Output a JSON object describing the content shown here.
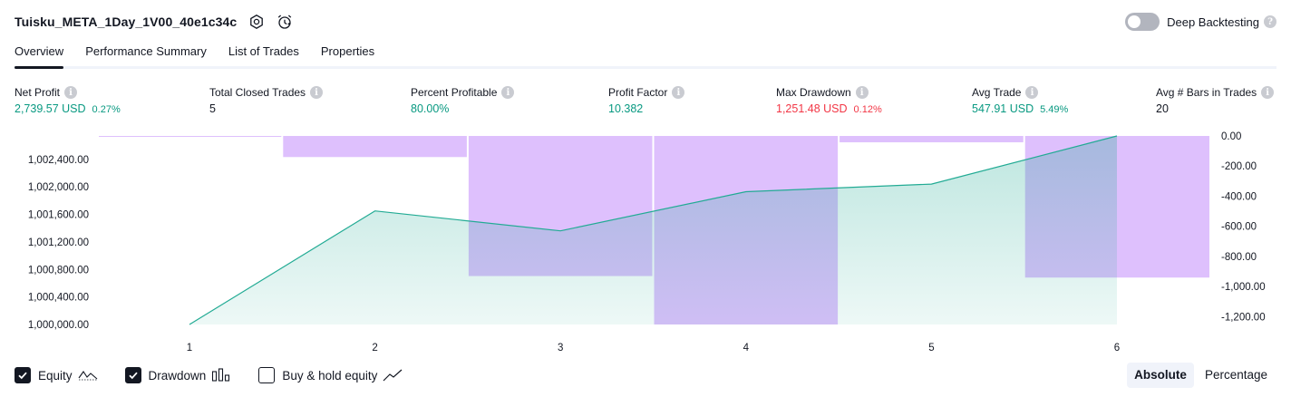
{
  "header": {
    "strategy_title": "Tuisku_META_1Day_1V00_40e1c34c",
    "deep_backtesting_label": "Deep Backtesting",
    "deep_backtesting_enabled": false
  },
  "tabs": [
    {
      "label": "Overview",
      "active": true
    },
    {
      "label": "Performance Summary",
      "active": false
    },
    {
      "label": "List of Trades",
      "active": false
    },
    {
      "label": "Properties",
      "active": false
    }
  ],
  "metrics": [
    {
      "label": "Net Profit",
      "value": "2,739.57 USD",
      "pct": "0.27%",
      "tone": "pos"
    },
    {
      "label": "Total Closed Trades",
      "value": "5",
      "pct": "",
      "tone": "neu"
    },
    {
      "label": "Percent Profitable",
      "value": "80.00%",
      "pct": "",
      "tone": "pos"
    },
    {
      "label": "Profit Factor",
      "value": "10.382",
      "pct": "",
      "tone": "pos"
    },
    {
      "label": "Max Drawdown",
      "value": "1,251.48 USD",
      "pct": "0.12%",
      "tone": "neg"
    },
    {
      "label": "Avg Trade",
      "value": "547.91 USD",
      "pct": "5.49%",
      "tone": "pos"
    },
    {
      "label": "Avg # Bars in Trades",
      "value": "20",
      "pct": "",
      "tone": "neu"
    }
  ],
  "chart_data": {
    "type": "area",
    "x": [
      1,
      2,
      3,
      4,
      5,
      6
    ],
    "x_tick_labels": [
      "1",
      "2",
      "3",
      "4",
      "5",
      "6"
    ],
    "left_axis": {
      "tick_labels": [
        "1,000,000.00",
        "1,000,400.00",
        "1,000,800.00",
        "1,001,200.00",
        "1,001,600.00",
        "1,002,000.00",
        "1,002,400.00"
      ],
      "ylim": [
        1000000,
        1002739.57
      ]
    },
    "right_axis": {
      "tick_labels": [
        "0.00",
        "-200.00",
        "-400.00",
        "-600.00",
        "-800.00",
        "-1,000.00",
        "-1,200.00"
      ],
      "ylim": [
        -1251.48,
        0
      ]
    },
    "series": [
      {
        "name": "Equity",
        "kind": "line-area",
        "axis": "left",
        "values": [
          1000000,
          1001650,
          1001360,
          1001930,
          1002040,
          1002739.57
        ],
        "color": "#22ab94"
      },
      {
        "name": "Drawdown",
        "kind": "bar",
        "axis": "right",
        "values": [
          -3,
          -140,
          -930,
          -1251.48,
          -42,
          -940
        ],
        "color": "#d1a8fc"
      }
    ]
  },
  "legend": [
    {
      "label": "Equity",
      "checked": true,
      "icon": "equity-line-icon"
    },
    {
      "label": "Drawdown",
      "checked": true,
      "icon": "drawdown-bars-icon"
    },
    {
      "label": "Buy & hold equity",
      "checked": false,
      "icon": "buy-hold-line-icon"
    }
  ],
  "mode_switch": {
    "absolute_label": "Absolute",
    "percentage_label": "Percentage",
    "active": "absolute"
  }
}
